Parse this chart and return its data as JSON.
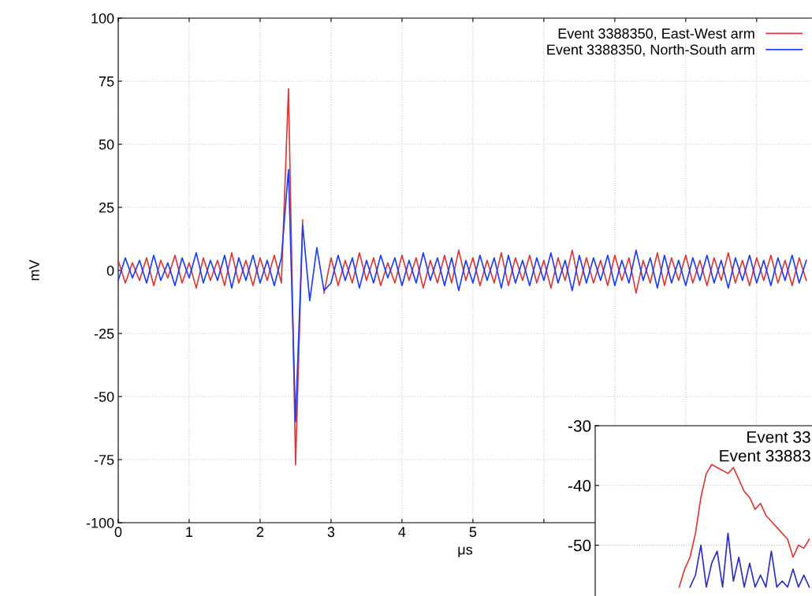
{
  "chart_data": [
    {
      "type": "line",
      "xlabel": "μs",
      "ylabel": "mV",
      "xlim": [
        0,
        9.78
      ],
      "ylim": [
        -100,
        100
      ],
      "xticks": [
        0,
        1,
        2,
        3,
        4,
        5,
        {
          "value": 6,
          "label": null
        },
        {
          "value": 7,
          "label": null
        },
        {
          "value": 8,
          "label": null
        },
        {
          "value": 9,
          "label": null
        }
      ],
      "yticks": [
        -100,
        -75,
        -50,
        -25,
        0,
        25,
        50,
        75,
        100
      ],
      "grid": true,
      "legend": "top right",
      "x": [
        0.0,
        0.1,
        0.2,
        0.3,
        0.4,
        0.5,
        0.6,
        0.7,
        0.8,
        0.9,
        1.0,
        1.1,
        1.2,
        1.3,
        1.4,
        1.5,
        1.6,
        1.7,
        1.8,
        1.9,
        2.0,
        2.1,
        2.2,
        2.3,
        2.4,
        2.5,
        2.6,
        2.7,
        2.8,
        2.9,
        3.0,
        3.1,
        3.2,
        3.3,
        3.4,
        3.5,
        3.6,
        3.7,
        3.8,
        3.9,
        4.0,
        4.1,
        4.2,
        4.3,
        4.4,
        4.5,
        4.6,
        4.7,
        4.8,
        4.9,
        5.0,
        5.1,
        5.2,
        5.3,
        5.4,
        5.5,
        5.6,
        5.7,
        5.8,
        5.9,
        6.0,
        6.1,
        6.2,
        6.3,
        6.4,
        6.5,
        6.6,
        6.7,
        6.8,
        6.9,
        7.0,
        7.1,
        7.2,
        7.3,
        7.4,
        7.5,
        7.6,
        7.7,
        7.8,
        7.9,
        8.0,
        8.1,
        8.2,
        8.3,
        8.4,
        8.5,
        8.6,
        8.7,
        8.8,
        8.9,
        9.0,
        9.1,
        9.2,
        9.3,
        9.4,
        9.5,
        9.6,
        9.7
      ],
      "series": [
        {
          "name": "Event 3388350, East-West arm",
          "color": "#d83a3a",
          "values": [
            4,
            -5,
            3,
            -4,
            5,
            -6,
            4,
            -3,
            6,
            -5,
            3,
            -7,
            5,
            -4,
            4,
            -6,
            7,
            -5,
            4,
            -6,
            5,
            -4,
            6,
            -5,
            72,
            -77,
            20,
            null,
            null,
            -9,
            5,
            -6,
            4,
            -5,
            7,
            -4,
            5,
            -6,
            3,
            -5,
            6,
            -4,
            5,
            -7,
            4,
            -5,
            6,
            -5,
            8,
            -4,
            5,
            -6,
            4,
            -5,
            7,
            -6,
            5,
            -4,
            6,
            -5,
            4,
            -7,
            5,
            -4,
            8,
            -6,
            5,
            -5,
            4,
            -6,
            6,
            -4,
            5,
            -9,
            4,
            -5,
            7,
            -6,
            5,
            -4,
            6,
            -5,
            4,
            -6,
            5,
            -4,
            7,
            -5,
            4,
            -6,
            5,
            -4,
            6,
            -5,
            4,
            -6,
            5,
            -4
          ]
        },
        {
          "name": "Event 3388350, North-South arm",
          "color": "#1f3df2",
          "values": [
            -4,
            5,
            -3,
            4,
            -5,
            6,
            -4,
            3,
            -6,
            5,
            -3,
            7,
            -5,
            4,
            -4,
            6,
            -7,
            5,
            -4,
            6,
            -5,
            4,
            -6,
            5,
            40,
            -60,
            18,
            -12,
            9,
            -8,
            -5,
            6,
            -4,
            5,
            -7,
            4,
            -5,
            6,
            -3,
            5,
            -6,
            4,
            -5,
            7,
            -4,
            5,
            -6,
            5,
            -8,
            4,
            -5,
            6,
            -4,
            5,
            -7,
            6,
            -5,
            4,
            -6,
            5,
            -4,
            7,
            -5,
            4,
            -8,
            6,
            -5,
            5,
            -4,
            6,
            -6,
            4,
            -5,
            8,
            -4,
            5,
            -7,
            6,
            -5,
            4,
            -6,
            5,
            -4,
            6,
            -5,
            4,
            -7,
            5,
            -4,
            6,
            -5,
            4,
            -6,
            5,
            -4,
            6,
            -5,
            4
          ]
        }
      ]
    },
    {
      "type": "line",
      "ylim": [
        -58.5,
        -30
      ],
      "yticks": [
        -30,
        -40,
        -50
      ],
      "grid": "y",
      "categories": [
        null,
        null,
        null,
        null,
        null,
        null,
        null,
        null,
        null,
        null,
        null,
        null,
        null,
        null,
        null,
        null,
        null,
        null,
        null,
        null,
        null,
        null,
        null,
        null,
        null,
        null,
        null,
        null,
        null,
        null,
        null,
        null,
        null,
        null,
        null,
        null,
        null,
        null,
        null,
        null
      ],
      "annotations": [
        "Event 33",
        "Event 33883"
      ],
      "series": [
        {
          "color": "#d83a3a",
          "values": [
            null,
            null,
            null,
            null,
            null,
            null,
            null,
            null,
            null,
            null,
            null,
            null,
            null,
            null,
            null,
            -57,
            -54,
            -52,
            -48,
            -42,
            -38,
            -36.5,
            -37,
            -37.5,
            -38,
            -37,
            -39,
            -41,
            -42,
            -44,
            -43,
            -45,
            -46,
            -47,
            -48,
            -49,
            -52,
            -50,
            -50.5,
            -49
          ]
        },
        {
          "color": "#2a2fc0",
          "values": [
            null,
            null,
            null,
            null,
            null,
            null,
            null,
            null,
            null,
            null,
            null,
            null,
            null,
            null,
            null,
            null,
            null,
            -57,
            -55,
            -50,
            -57,
            -53,
            -51,
            -57,
            -48,
            -56,
            -52,
            -57,
            -53,
            -57,
            -55,
            -57,
            -51,
            -57,
            -56,
            -57,
            -54,
            -57,
            -55,
            -57
          ]
        }
      ]
    }
  ]
}
